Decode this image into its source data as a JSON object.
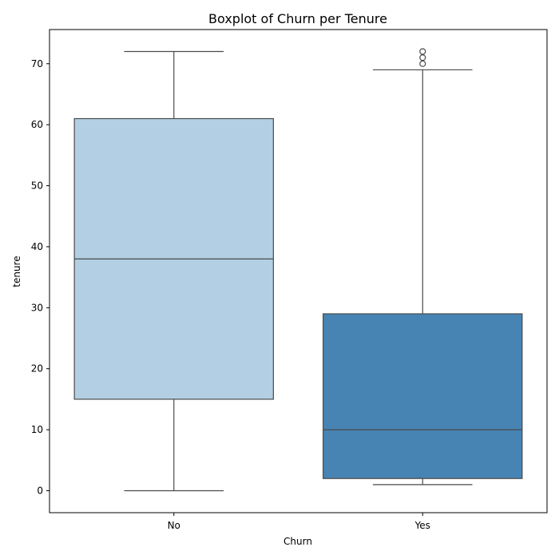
{
  "chart_data": {
    "type": "boxplot",
    "title": "Boxplot of Churn per Tenure",
    "xlabel": "Churn",
    "ylabel": "tenure",
    "categories": [
      "No",
      "Yes"
    ],
    "ylim": [
      -3.6,
      75.6
    ],
    "yticks": [
      0,
      10,
      20,
      30,
      40,
      50,
      60,
      70
    ],
    "grid": false,
    "legend": "none",
    "boxes": [
      {
        "category": "No",
        "whisker_low": 0,
        "q1": 15,
        "median": 38,
        "q3": 61,
        "whisker_high": 72,
        "outliers": []
      },
      {
        "category": "Yes",
        "whisker_low": 1,
        "q1": 2,
        "median": 10,
        "q3": 29,
        "whisker_high": 69,
        "outliers": [
          70,
          71,
          72
        ]
      }
    ],
    "colors": [
      "#b3cfe3",
      "#4784b4"
    ],
    "line_color": "#4a4a4a"
  }
}
